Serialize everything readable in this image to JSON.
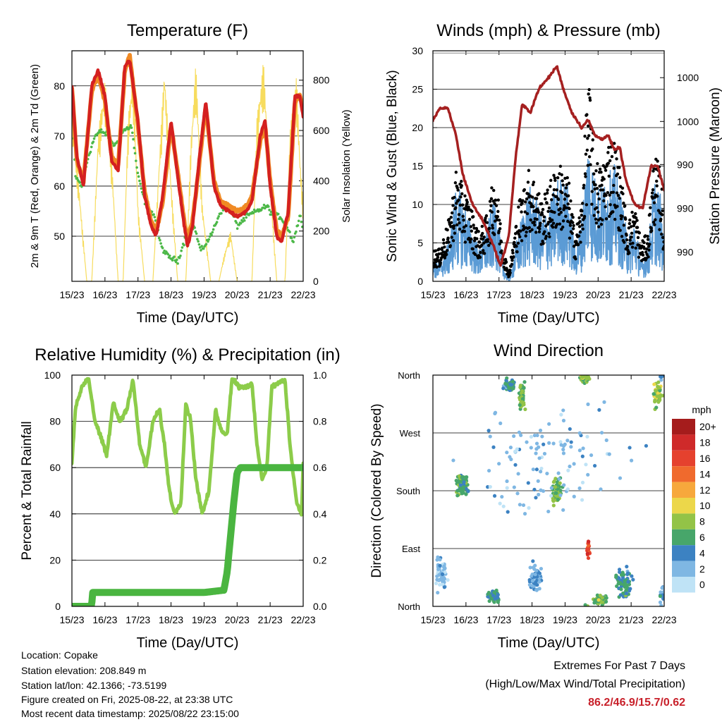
{
  "chart_data": [
    {
      "type": "line",
      "title": "Temperature (F)",
      "xlabel": "Time (Day/UTC)",
      "ylabel": "2m & 9m T (Red, Orange) & 2m Td (Green)",
      "y2label": "Solar Insolation (Yellow)",
      "x_ticks": [
        "15/23",
        "16/23",
        "17/23",
        "18/23",
        "19/23",
        "20/23",
        "21/23",
        "22/23"
      ],
      "ylim": [
        41,
        87
      ],
      "y_ticks": [
        50,
        60,
        70,
        80
      ],
      "y2lim": [
        0,
        917
      ],
      "y2_ticks": [
        0,
        200,
        400,
        600,
        800
      ],
      "grid": true,
      "series": [
        {
          "color": "#d42020",
          "x": [
            0,
            0.15,
            0.35,
            0.6,
            0.8,
            1.0,
            1.2,
            1.4,
            1.6,
            1.75,
            2.0,
            2.2,
            2.4,
            2.55,
            2.75,
            3.0,
            3.2,
            3.4,
            3.5,
            3.65,
            3.85,
            4.05,
            4.3,
            4.5,
            4.75,
            5.0,
            5.3,
            5.45,
            5.7,
            5.85,
            6.0,
            6.2,
            6.35,
            6.55,
            6.75,
            6.9,
            7.0
          ],
          "y": [
            80,
            66,
            60,
            80,
            83,
            78,
            65,
            63,
            84,
            85,
            73,
            58,
            52,
            50,
            58,
            73,
            62,
            52,
            48,
            52,
            65,
            77,
            60,
            56,
            55,
            54,
            55,
            57,
            70,
            73,
            60,
            50,
            49,
            55,
            78,
            78,
            74
          ]
        },
        {
          "color": "#f08a24",
          "x": [
            0,
            0.15,
            0.35,
            0.6,
            0.8,
            1.0,
            1.2,
            1.4,
            1.6,
            1.75,
            2.0,
            2.2,
            2.4,
            2.55,
            2.75,
            3.0,
            3.2,
            3.4,
            3.5,
            3.65,
            3.85,
            4.05,
            4.3,
            4.5,
            4.75,
            5.0,
            5.3,
            5.45,
            5.7,
            5.85,
            6.0,
            6.2,
            6.35,
            6.55,
            6.75,
            6.9,
            7.0
          ],
          "y": [
            80,
            65,
            61,
            79,
            82,
            77,
            66,
            64,
            83,
            86,
            72,
            59,
            53,
            51,
            57,
            72,
            63,
            53,
            49,
            53,
            64,
            76,
            61,
            57,
            56,
            55,
            56,
            58,
            69,
            72,
            61,
            51,
            50,
            54,
            77,
            78,
            75
          ]
        },
        {
          "color": "#4cb848",
          "x": [
            0,
            0.1,
            0.3,
            0.5,
            0.7,
            0.9,
            1.1,
            1.3,
            1.55,
            1.8,
            2.0,
            2.2,
            2.5,
            2.7,
            2.9,
            3.2,
            3.5,
            3.7,
            3.9,
            4.2,
            4.5,
            4.8,
            5.0,
            5.3,
            5.6,
            5.9,
            6.1,
            6.3,
            6.5,
            6.7,
            6.9,
            7.0
          ],
          "y": [
            78,
            62,
            60,
            66,
            70,
            71,
            70,
            68,
            71,
            72,
            62,
            57,
            54,
            48,
            46,
            45,
            51,
            52,
            47,
            50,
            55,
            56,
            52,
            54,
            55,
            56,
            54,
            54,
            52,
            49,
            54,
            52
          ]
        },
        {
          "color": "#f7dc5e",
          "axis": "y2",
          "x": [
            0,
            0.2,
            0.45,
            0.6,
            0.8,
            1.0,
            1.2,
            1.4,
            1.55,
            1.7,
            1.85,
            2.0,
            2.2,
            2.45,
            2.65,
            2.8,
            3.0,
            3.2,
            3.45,
            3.6,
            3.75,
            3.95,
            4.2,
            4.45,
            4.6,
            4.8,
            5.0,
            5.2,
            5.45,
            5.6,
            5.8,
            6.0,
            6.2,
            6.45,
            6.6,
            6.8,
            6.9,
            7.0
          ],
          "y": [
            700,
            400,
            0,
            0,
            600,
            800,
            500,
            0,
            0,
            650,
            850,
            300,
            0,
            0,
            500,
            860,
            400,
            0,
            0,
            560,
            870,
            300,
            0,
            0,
            100,
            200,
            0,
            0,
            0,
            650,
            880,
            400,
            0,
            0,
            600,
            820,
            500,
            300
          ]
        }
      ]
    },
    {
      "type": "scatter",
      "title": "Winds (mph) & Pressure (mb)",
      "xlabel": "Time (Day/UTC)",
      "ylabel": "Sonic Wind & Gust (Blue, Black)",
      "y2label": "Station Pressure (Maroon)",
      "x_ticks": [
        "15/23",
        "16/23",
        "17/23",
        "18/23",
        "19/23",
        "20/23",
        "21/23",
        "22/23"
      ],
      "ylim": [
        0,
        30
      ],
      "y_ticks": [
        0,
        5,
        10,
        15,
        20,
        25,
        30
      ],
      "y2_tick_labels": [
        "990",
        "990",
        "990",
        "1000",
        "1000"
      ],
      "y2_tick_positions_in_y_units": [
        3.8,
        9.5,
        15.2,
        20.8,
        26.5
      ],
      "grid": true,
      "gust_envelope": {
        "color": "#000000",
        "x": [
          0,
          0.2,
          0.5,
          0.7,
          0.9,
          1.1,
          1.4,
          1.6,
          1.9,
          2.1,
          2.3,
          2.6,
          2.9,
          3.1,
          3.3,
          3.5,
          3.8,
          4.1,
          4.3,
          4.5,
          4.7,
          4.9,
          5.1,
          5.3,
          5.5,
          5.7,
          5.9,
          6.1,
          6.3,
          6.5,
          6.7,
          6.9,
          7.0
        ],
        "y": [
          4,
          4,
          8,
          14,
          12,
          10,
          6,
          8,
          14,
          5,
          1,
          10,
          14,
          13,
          10,
          12,
          15,
          13,
          6,
          10,
          26,
          16,
          14,
          18,
          18,
          13,
          7,
          10,
          5,
          6,
          16,
          14,
          6
        ]
      },
      "wind": {
        "color": "#5b9bd5",
        "x": [
          0,
          0.2,
          0.5,
          0.7,
          0.9,
          1.1,
          1.4,
          1.6,
          1.9,
          2.1,
          2.3,
          2.6,
          2.9,
          3.1,
          3.3,
          3.5,
          3.8,
          4.1,
          4.3,
          4.5,
          4.7,
          4.9,
          5.1,
          5.3,
          5.5,
          5.7,
          5.9,
          6.1,
          6.3,
          6.5,
          6.7,
          6.9,
          7.0
        ],
        "y": [
          2,
          2,
          4,
          9,
          8,
          6,
          3,
          5,
          8,
          2,
          0,
          5,
          9,
          8,
          6,
          7,
          10,
          9,
          3,
          6,
          14,
          10,
          9,
          10,
          11,
          8,
          4,
          6,
          2,
          3,
          10,
          8,
          3
        ]
      },
      "pressure": {
        "color": "#a52020",
        "x": [
          0,
          0.2,
          0.45,
          0.7,
          0.9,
          1.2,
          1.5,
          1.8,
          2.05,
          2.3,
          2.5,
          2.7,
          2.95,
          3.2,
          3.5,
          3.75,
          3.95,
          4.2,
          4.5,
          4.7,
          4.9,
          5.1,
          5.3,
          5.5,
          5.65,
          5.85,
          6.1,
          6.35,
          6.6,
          6.8,
          7.0
        ],
        "y": [
          21,
          22.5,
          22.5,
          19,
          14,
          10,
          8,
          5,
          2,
          6,
          16,
          23,
          22,
          25,
          26.5,
          28,
          25,
          22,
          20,
          21,
          19,
          18.5,
          19,
          17,
          17.5,
          13,
          10,
          9.5,
          15,
          15,
          12
        ]
      }
    },
    {
      "type": "line",
      "title": "Relative Humidity (%) & Precipitation (in)",
      "xlabel": "Time (Day/UTC)",
      "ylabel": "Percent & Total Rainfall",
      "x_ticks": [
        "15/23",
        "16/23",
        "17/23",
        "18/23",
        "19/23",
        "20/23",
        "21/23",
        "22/23"
      ],
      "ylim": [
        0,
        100
      ],
      "y_ticks": [
        0,
        20,
        40,
        60,
        80,
        100
      ],
      "y2lim": [
        0,
        1.0
      ],
      "y2_ticks": [
        "0.0",
        "0.2",
        "0.4",
        "0.6",
        "0.8",
        "1.0"
      ],
      "grid": true,
      "series": [
        {
          "color": "#8ccc4a",
          "x": [
            0,
            0.1,
            0.3,
            0.5,
            0.7,
            0.9,
            1.05,
            1.25,
            1.45,
            1.65,
            1.85,
            2.05,
            2.25,
            2.45,
            2.65,
            2.8,
            2.95,
            3.1,
            3.3,
            3.45,
            3.6,
            3.75,
            3.95,
            4.15,
            4.35,
            4.55,
            4.7,
            4.85,
            5.05,
            5.25,
            5.45,
            5.6,
            5.75,
            5.9,
            6.05,
            6.2,
            6.45,
            6.6,
            6.8,
            6.95,
            7.0
          ],
          "y": [
            62,
            85,
            95,
            99,
            80,
            72,
            65,
            88,
            80,
            85,
            98,
            70,
            60,
            80,
            85,
            70,
            50,
            40,
            45,
            88,
            80,
            55,
            40,
            50,
            85,
            75,
            75,
            99,
            95,
            95,
            96,
            70,
            55,
            60,
            95,
            96,
            98,
            70,
            45,
            40,
            62
          ]
        },
        {
          "color": "#4ab540",
          "axis": "y2",
          "x": [
            0,
            0.6,
            0.62,
            1.0,
            2.0,
            3.0,
            4.0,
            4.6,
            4.7,
            4.8,
            4.9,
            5.0,
            5.1,
            5.2,
            5.5,
            6.0,
            6.5,
            7.0
          ],
          "y": [
            0.0,
            0.0,
            0.06,
            0.06,
            0.06,
            0.06,
            0.06,
            0.07,
            0.15,
            0.3,
            0.45,
            0.58,
            0.6,
            0.6,
            0.6,
            0.6,
            0.6,
            0.6
          ]
        }
      ]
    },
    {
      "type": "scatter",
      "title": "Wind Direction",
      "xlabel": "Time (Day/UTC)",
      "ylabel": "Direction (Colored By Speed)",
      "x_ticks": [
        "15/23",
        "16/23",
        "17/23",
        "18/23",
        "19/23",
        "20/23",
        "21/23",
        "22/23"
      ],
      "y_tick_labels": [
        "North",
        "East",
        "South",
        "West",
        "North"
      ],
      "y_tick_degrees": [
        0,
        90,
        180,
        270,
        360
      ],
      "grid": true,
      "clusters": [
        {
          "x": 0.25,
          "deg": 50,
          "spread_x": 0.25,
          "spread_deg": 35,
          "speed": 1.5,
          "n": 60
        },
        {
          "x": 0.9,
          "deg": 190,
          "spread_x": 0.25,
          "spread_deg": 22,
          "speed": 6,
          "n": 90
        },
        {
          "x": 1.85,
          "deg": 15,
          "spread_x": 0.25,
          "spread_deg": 12,
          "speed": 5,
          "n": 50
        },
        {
          "x": 2.3,
          "deg": 345,
          "spread_x": 0.25,
          "spread_deg": 15,
          "speed": 5,
          "n": 50
        },
        {
          "x": 2.7,
          "deg": 325,
          "spread_x": 0.12,
          "spread_deg": 30,
          "speed": 7,
          "n": 60
        },
        {
          "x": 3.1,
          "deg": 45,
          "spread_x": 0.3,
          "spread_deg": 30,
          "speed": 3,
          "n": 60
        },
        {
          "x": 3.75,
          "deg": 180,
          "spread_x": 0.2,
          "spread_deg": 30,
          "speed": 7,
          "n": 60
        },
        {
          "x": 4.6,
          "deg": 355,
          "spread_x": 0.25,
          "spread_deg": 10,
          "speed": 8,
          "n": 40
        },
        {
          "x": 4.7,
          "deg": 90,
          "spread_x": 0.07,
          "spread_deg": 20,
          "speed": 16,
          "n": 20
        },
        {
          "x": 5.05,
          "deg": 10,
          "spread_x": 0.3,
          "spread_deg": 10,
          "speed": 7,
          "n": 70
        },
        {
          "x": 5.8,
          "deg": 35,
          "spread_x": 0.35,
          "spread_deg": 30,
          "speed": 5,
          "n": 70
        },
        {
          "x": 6.8,
          "deg": 330,
          "spread_x": 0.2,
          "spread_deg": 25,
          "speed": 8,
          "n": 50
        },
        {
          "x": 6.95,
          "deg": 10,
          "spread_x": 0.1,
          "spread_deg": 30,
          "speed": 3,
          "n": 20
        },
        {
          "x": 3.5,
          "deg": 230,
          "spread_x": 3.4,
          "spread_deg": 130,
          "speed": 2,
          "n": 120
        }
      ],
      "legend": {
        "title": "mph",
        "labels": [
          "20+",
          "18",
          "16",
          "14",
          "12",
          "10",
          "8",
          "6",
          "4",
          "2",
          "0"
        ],
        "colors": [
          "#a51c1c",
          "#cf2a2a",
          "#e5412e",
          "#f06a2d",
          "#f7a83c",
          "#ecd74a",
          "#93c347",
          "#47a66a",
          "#3c82c2",
          "#7fb7e3",
          "#bfe3f6"
        ]
      }
    }
  ],
  "info": {
    "location": "Location: Copake",
    "elevation": "Station elevation: 208.849 m",
    "latlon": "Station lat/lon: 42.1366; -73.5199",
    "created": "Figure created on Fri, 2025-08-22, at 23:38 UTC",
    "recent": "Most recent data timestamp: 2025/08/22 23:15:00"
  },
  "extremes": {
    "line1": "Extremes For Past 7 Days",
    "line2": "(High/Low/Max Wind/Total Precipitation)",
    "values": "86.2/46.9/15.7/0.62"
  }
}
